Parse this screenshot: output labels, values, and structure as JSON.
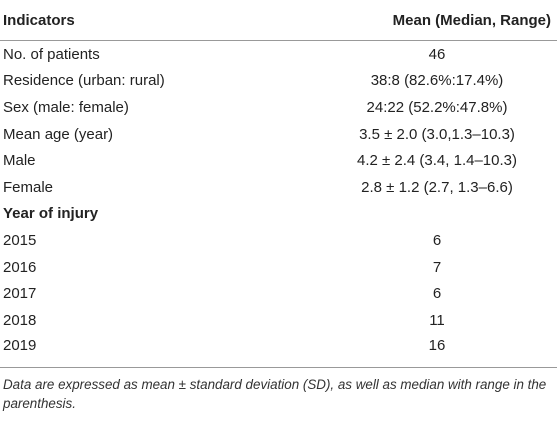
{
  "table": {
    "header": [
      "Indicators",
      "Mean (Median, Range)"
    ],
    "rows": [
      [
        "No. of patients",
        "46"
      ],
      [
        "Residence (urban: rural)",
        "38:8 (82.6%:17.4%)"
      ],
      [
        "Sex (male: female)",
        "24:22 (52.2%:47.8%)"
      ],
      [
        "Mean age (year)",
        "3.5 ± 2.0 (3.0,1.3–10.3)"
      ],
      [
        "Male",
        "4.2 ± 2.4 (3.4, 1.4–10.3)"
      ],
      [
        "Female",
        "2.8 ± 1.2 (2.7, 1.3–6.6)"
      ],
      [
        "Year of injury"
      ],
      [
        "2015",
        "6"
      ],
      [
        "2016",
        "7"
      ],
      [
        "2017",
        "6"
      ],
      [
        "2018",
        "11"
      ],
      [
        "2019",
        "16"
      ]
    ],
    "footnote": "Data are expressed as mean ± standard deviation (SD), as well as median with range in the parenthesis."
  }
}
